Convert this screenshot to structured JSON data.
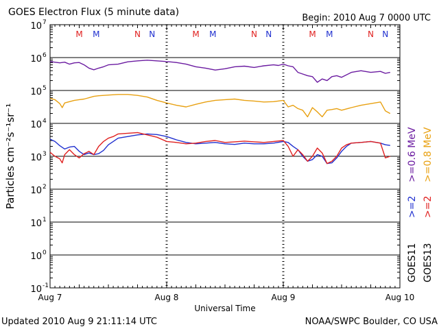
{
  "title": "GOES Electron Flux (5 minute data)",
  "begin": "Begin: 2010 Aug 7 0000 UTC",
  "updated": "Updated 2010 Aug  9 21:11:14 UTC",
  "credit": "NOAA/SWPC Boulder, CO USA",
  "ylabel": "Particles cm⁻²s⁻¹sr⁻¹",
  "xlabel": "Universal Time",
  "legend": {
    "goes11": "GOES11",
    "goes13": "GOES13",
    "gt2_goes11": ">=2",
    "gt2_goes13": ">=2",
    "e06": ">=0.6 MeV",
    "e08": ">=0.8 MeV"
  },
  "colors": {
    "goes11_2mev": "#1f2fcf",
    "goes13_2mev": "#e0201f",
    "goes11_06mev": "#6a1aa0",
    "goes13_08mev": "#e8a010",
    "marker_M": "#e0201f",
    "marker_N": "#1f2fcf"
  },
  "markers": [
    {
      "label": "M",
      "hour": 6.0,
      "color": "#e0201f"
    },
    {
      "label": "M",
      "hour": 9.5,
      "color": "#1f2fcf"
    },
    {
      "label": "N",
      "hour": 18.0,
      "color": "#e0201f"
    },
    {
      "label": "N",
      "hour": 21.0,
      "color": "#1f2fcf"
    },
    {
      "label": "M",
      "hour": 30.0,
      "color": "#e0201f"
    },
    {
      "label": "M",
      "hour": 33.5,
      "color": "#1f2fcf"
    },
    {
      "label": "N",
      "hour": 42.0,
      "color": "#e0201f"
    },
    {
      "label": "N",
      "hour": 45.0,
      "color": "#1f2fcf"
    },
    {
      "label": "M",
      "hour": 54.0,
      "color": "#e0201f"
    },
    {
      "label": "M",
      "hour": 57.5,
      "color": "#1f2fcf"
    },
    {
      "label": "N",
      "hour": 66.0,
      "color": "#e0201f"
    },
    {
      "label": "N",
      "hour": 69.0,
      "color": "#1f2fcf"
    }
  ],
  "chart_data": {
    "type": "line",
    "title": "GOES Electron Flux (5 minute data)",
    "xlabel": "Universal Time",
    "ylabel": "Particles cm-2 s-1 sr-1",
    "xlim": [
      0,
      72
    ],
    "x_unit": "hours since 2010 Aug 7 0000 UTC",
    "x_ticks": [
      {
        "hour": 0,
        "label": "Aug 7"
      },
      {
        "hour": 24,
        "label": "Aug 8"
      },
      {
        "hour": 48,
        "label": "Aug 9"
      },
      {
        "hour": 72,
        "label": "Aug 10"
      }
    ],
    "ylim_log10": [
      -1,
      7
    ],
    "y_ticks": [
      {
        "exp": 7,
        "label": "10^7"
      },
      {
        "exp": 6,
        "label": "10^6"
      },
      {
        "exp": 5,
        "label": "10^5"
      },
      {
        "exp": 4,
        "label": "10^4"
      },
      {
        "exp": 3,
        "label": "10^3"
      },
      {
        "exp": 2,
        "label": "10^2"
      },
      {
        "exp": 1,
        "label": "10^1"
      },
      {
        "exp": 0,
        "label": "10^0"
      },
      {
        "exp": -1,
        "label": "10^-1"
      }
    ],
    "threshold_log10": 3.0,
    "series": [
      {
        "name": "GOES11 >=0.6 MeV",
        "color": "#6a1aa0",
        "x": [
          0,
          2,
          3,
          4,
          5,
          6,
          7,
          8,
          9,
          10,
          11,
          12,
          14,
          16,
          18,
          20,
          22,
          24,
          26,
          28,
          30,
          32,
          34,
          36,
          38,
          40,
          42,
          44,
          46,
          47,
          48,
          49,
          50,
          51,
          52,
          53,
          54,
          55,
          56,
          57,
          58,
          59,
          60,
          62,
          64,
          66,
          68,
          69,
          70
        ],
        "log10_values": [
          5.88,
          5.84,
          5.86,
          5.8,
          5.84,
          5.85,
          5.78,
          5.68,
          5.63,
          5.68,
          5.72,
          5.78,
          5.8,
          5.87,
          5.9,
          5.92,
          5.9,
          5.88,
          5.85,
          5.8,
          5.72,
          5.68,
          5.62,
          5.66,
          5.72,
          5.74,
          5.7,
          5.75,
          5.78,
          5.76,
          5.8,
          5.75,
          5.72,
          5.55,
          5.5,
          5.45,
          5.42,
          5.25,
          5.35,
          5.3,
          5.42,
          5.45,
          5.4,
          5.55,
          5.6,
          5.55,
          5.58,
          5.52,
          5.55
        ]
      },
      {
        "name": "GOES13 >=0.8 MeV",
        "color": "#e8a010",
        "x": [
          0,
          1,
          2,
          2.5,
          3,
          4,
          5,
          6,
          7,
          8,
          9,
          10,
          12,
          14,
          16,
          18,
          20,
          22,
          24,
          26,
          28,
          30,
          32,
          34,
          36,
          38,
          40,
          42,
          44,
          46,
          48,
          49,
          50,
          51,
          52,
          53,
          54,
          55,
          56,
          57,
          58,
          59,
          60,
          62,
          64,
          66,
          68,
          69,
          70
        ],
        "log10_values": [
          4.76,
          4.72,
          4.6,
          4.48,
          4.62,
          4.66,
          4.7,
          4.72,
          4.74,
          4.78,
          4.82,
          4.84,
          4.86,
          4.88,
          4.88,
          4.85,
          4.8,
          4.7,
          4.62,
          4.55,
          4.5,
          4.58,
          4.65,
          4.7,
          4.72,
          4.74,
          4.7,
          4.68,
          4.65,
          4.66,
          4.7,
          4.5,
          4.55,
          4.45,
          4.4,
          4.2,
          4.48,
          4.35,
          4.2,
          4.4,
          4.42,
          4.45,
          4.4,
          4.48,
          4.55,
          4.6,
          4.65,
          4.38,
          4.3
        ]
      },
      {
        "name": "GOES11 >=2 MeV",
        "color": "#1f2fcf",
        "x": [
          0,
          1,
          2,
          3,
          4,
          5,
          6,
          7,
          8,
          9,
          10,
          11,
          12,
          13,
          14,
          16,
          18,
          20,
          22,
          24,
          26,
          28,
          30,
          32,
          34,
          36,
          38,
          40,
          42,
          44,
          46,
          48,
          49,
          50,
          51,
          52,
          53,
          54,
          55,
          56,
          57,
          58,
          59,
          60,
          61,
          62,
          64,
          66,
          68,
          69,
          70
        ],
        "log10_values": [
          3.52,
          3.45,
          3.32,
          3.22,
          3.28,
          3.3,
          3.15,
          3.05,
          3.1,
          3.05,
          3.08,
          3.18,
          3.35,
          3.45,
          3.55,
          3.6,
          3.65,
          3.68,
          3.66,
          3.6,
          3.5,
          3.42,
          3.38,
          3.4,
          3.42,
          3.38,
          3.36,
          3.4,
          3.38,
          3.38,
          3.4,
          3.45,
          3.42,
          3.3,
          3.2,
          3.0,
          2.85,
          2.9,
          3.05,
          3.0,
          2.78,
          2.8,
          2.95,
          3.15,
          3.3,
          3.4,
          3.42,
          3.45,
          3.4,
          3.35,
          3.33
        ]
      },
      {
        "name": "GOES13 >=2 MeV",
        "color": "#e0201f",
        "x": [
          0,
          1,
          2,
          2.5,
          3,
          4,
          5,
          6,
          7,
          8,
          9,
          10,
          11,
          12,
          13,
          14,
          16,
          18,
          20,
          22,
          24,
          26,
          28,
          30,
          32,
          34,
          36,
          38,
          40,
          42,
          44,
          46,
          48,
          49,
          50,
          51,
          52,
          53,
          54,
          55,
          56,
          57,
          58,
          59,
          60,
          61,
          62,
          64,
          66,
          68,
          69,
          70
        ],
        "log10_values": [
          3.12,
          3.0,
          2.92,
          2.8,
          3.05,
          3.2,
          3.05,
          2.95,
          3.08,
          3.15,
          3.05,
          3.3,
          3.45,
          3.55,
          3.6,
          3.68,
          3.7,
          3.72,
          3.65,
          3.58,
          3.45,
          3.42,
          3.38,
          3.4,
          3.45,
          3.48,
          3.42,
          3.44,
          3.46,
          3.44,
          3.42,
          3.45,
          3.48,
          3.3,
          3.0,
          3.2,
          3.05,
          2.85,
          3.0,
          3.25,
          3.1,
          2.78,
          2.85,
          3.0,
          3.25,
          3.35,
          3.4,
          3.42,
          3.45,
          3.4,
          2.95,
          3.0
        ]
      }
    ]
  }
}
